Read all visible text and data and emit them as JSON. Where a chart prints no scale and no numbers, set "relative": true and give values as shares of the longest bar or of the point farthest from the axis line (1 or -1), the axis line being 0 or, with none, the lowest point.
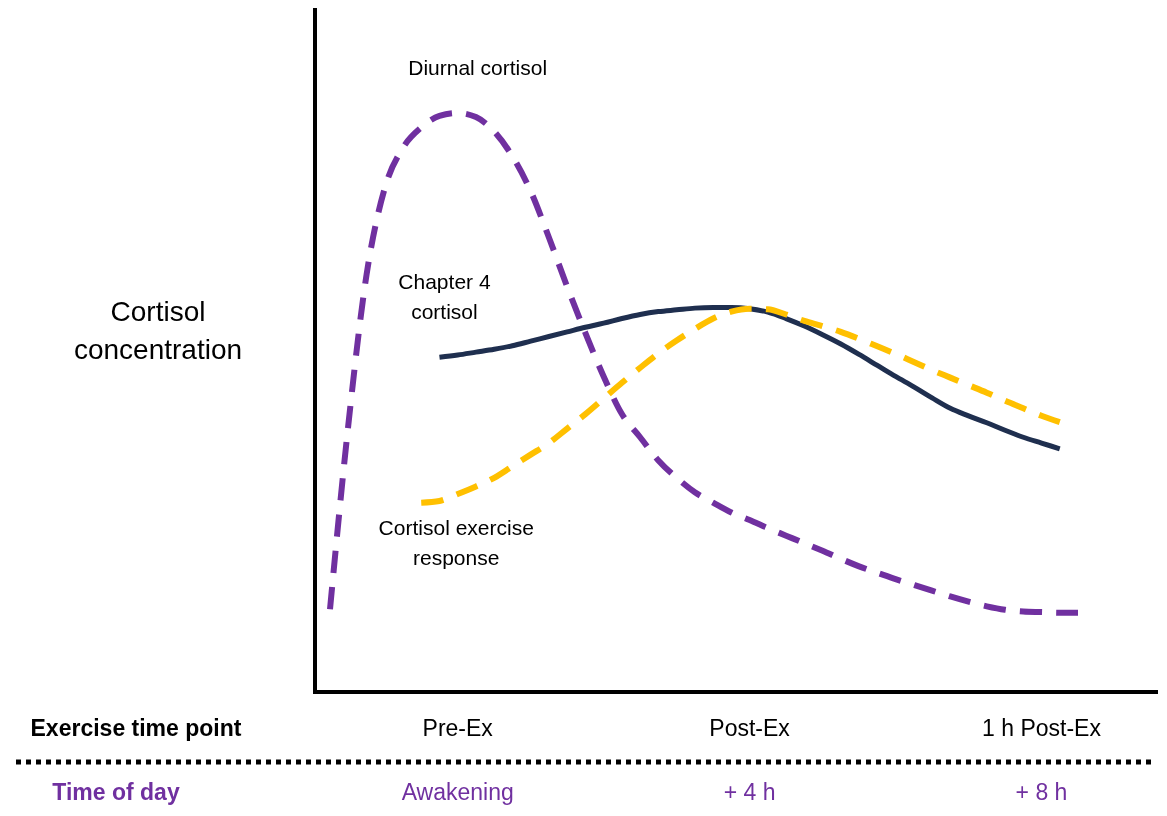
{
  "chart_data": {
    "type": "line",
    "relative": true,
    "ylabel": "Cortisol concentration",
    "xlabel": "Exercise time point",
    "categories": [
      null,
      null,
      null,
      null,
      null,
      null,
      null,
      "Pre-Ex",
      null,
      null,
      null,
      null,
      null,
      null,
      null,
      null,
      null,
      null,
      null,
      null,
      null,
      null,
      null,
      "Post-Ex",
      null,
      null,
      null,
      null,
      null,
      null,
      null,
      null,
      null,
      null,
      null,
      null,
      null,
      null,
      null,
      "1 h  Post-Ex",
      null,
      null
    ],
    "annotations": [
      "Time of day",
      "Awakening",
      "+ 4 h",
      "+ 8 h"
    ],
    "series": [
      {
        "name": "Diurnal cortisol",
        "color": "#7030a0",
        "line_style": "dashed",
        "values": [
          0.143,
          0.46,
          0.72,
          0.87,
          0.94,
          0.975,
          0.995,
          1,
          0.993,
          0.968,
          0.925,
          0.865,
          0.785,
          0.7,
          0.62,
          0.545,
          0.48,
          0.44,
          0.4,
          0.37,
          0.345,
          0.327,
          0.31,
          0.297,
          0.283,
          0.27,
          0.257,
          0.244,
          0.23,
          0.217,
          0.206,
          0.195,
          0.185,
          0.175,
          0.165,
          0.156,
          0.148,
          0.142,
          0.139,
          0.138,
          0.137,
          0.137
        ]
      },
      {
        "name": "Chapter 4 cortisol",
        "color": "#1f2f4f",
        "line_style": "solid",
        "values": [
          null,
          null,
          null,
          null,
          null,
          null,
          0.578,
          0.582,
          0.587,
          0.592,
          0.598,
          0.606,
          0.614,
          0.622,
          0.63,
          0.637,
          0.645,
          0.652,
          0.657,
          0.66,
          0.663,
          0.664,
          0.664,
          0.662,
          0.656,
          0.645,
          0.632,
          0.617,
          0.601,
          0.583,
          0.564,
          0.545,
          0.527,
          0.508,
          0.49,
          0.477,
          0.465,
          0.452,
          0.44,
          0.43,
          0.42,
          null
        ]
      },
      {
        "name": "Cortisol exercise response",
        "color": "#ffc000",
        "line_style": "dashed",
        "values": [
          null,
          null,
          null,
          null,
          null,
          0.327,
          0.33,
          0.342,
          0.355,
          0.37,
          0.39,
          0.41,
          0.43,
          0.455,
          0.48,
          0.507,
          0.534,
          0.56,
          0.585,
          0.607,
          0.627,
          0.645,
          0.657,
          0.662,
          0.661,
          0.652,
          0.641,
          0.632,
          0.622,
          0.61,
          0.597,
          0.584,
          0.57,
          0.556,
          0.543,
          0.53,
          0.517,
          0.503,
          0.49,
          0.477,
          0.466,
          null
        ]
      }
    ]
  }
}
